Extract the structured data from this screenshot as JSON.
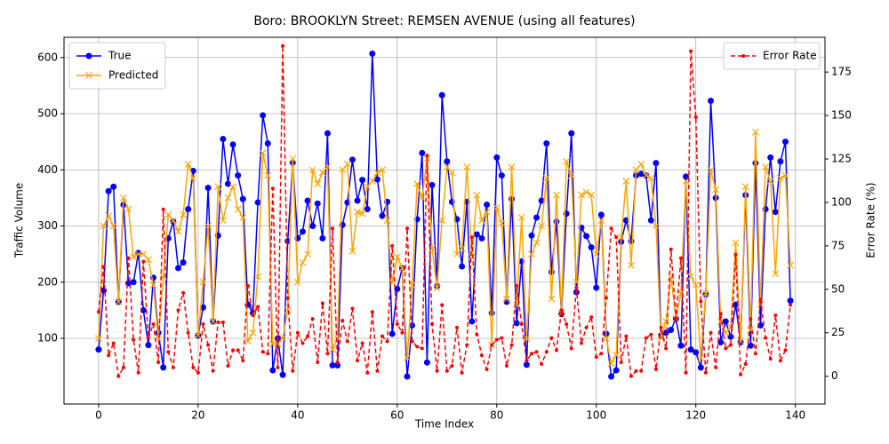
{
  "chart_data": {
    "type": "line",
    "title": "Boro: BROOKLYN Street: REMSEN AVENUE (using all features)",
    "xlabel": "Time Index",
    "ylabel": "Traffic Volume",
    "y2label": "Error Rate (%)",
    "x": [
      0,
      1,
      2,
      3,
      4,
      5,
      6,
      7,
      8,
      9,
      10,
      11,
      12,
      13,
      14,
      15,
      16,
      17,
      18,
      19,
      20,
      21,
      22,
      23,
      24,
      25,
      26,
      27,
      28,
      29,
      30,
      31,
      32,
      33,
      34,
      35,
      36,
      37,
      38,
      39,
      40,
      41,
      42,
      43,
      44,
      45,
      46,
      47,
      48,
      49,
      50,
      51,
      52,
      53,
      54,
      55,
      56,
      57,
      58,
      59,
      60,
      61,
      62,
      63,
      64,
      65,
      66,
      67,
      68,
      69,
      70,
      71,
      72,
      73,
      74,
      75,
      76,
      77,
      78,
      79,
      80,
      81,
      82,
      83,
      84,
      85,
      86,
      87,
      88,
      89,
      90,
      91,
      92,
      93,
      94,
      95,
      96,
      97,
      98,
      99,
      100,
      101,
      102,
      103,
      104,
      105,
      106,
      107,
      108,
      109,
      110,
      111,
      112,
      113,
      114,
      115,
      116,
      117,
      118,
      119,
      120,
      121,
      122,
      123,
      124,
      125,
      126,
      127,
      128,
      129,
      130,
      131,
      132,
      133,
      134,
      135,
      136,
      137,
      138,
      139
    ],
    "series": [
      {
        "name": "True",
        "color": "#0000ff",
        "marker": "circle",
        "linestyle": "solid",
        "axis": "y",
        "values": [
          80,
          185,
          362,
          370,
          165,
          338,
          198,
          200,
          252,
          150,
          88,
          208,
          110,
          48,
          278,
          308,
          225,
          235,
          330,
          398,
          105,
          155,
          368,
          130,
          283,
          455,
          375,
          445,
          390,
          348,
          160,
          145,
          342,
          497,
          447,
          43,
          100,
          35,
          273,
          413,
          278,
          290,
          345,
          300,
          340,
          278,
          465,
          52,
          52,
          302,
          342,
          418,
          345,
          382,
          330,
          607,
          383,
          318,
          343,
          108,
          188,
          225,
          32,
          123,
          312,
          430,
          57,
          373,
          193,
          533,
          415,
          343,
          312,
          228,
          343,
          130,
          285,
          278,
          338,
          145,
          422,
          390,
          165,
          348,
          127,
          237,
          53,
          283,
          315,
          345,
          447,
          218,
          308,
          143,
          322,
          465,
          182,
          297,
          282,
          262,
          190,
          320,
          108,
          32,
          43,
          272,
          310,
          273,
          390,
          393,
          390,
          310,
          412,
          105,
          110,
          115,
          135,
          87,
          388,
          80,
          75,
          48,
          178,
          523,
          350,
          93,
          130,
          103,
          160,
          93,
          355,
          87,
          412,
          123,
          330,
          422,
          325,
          415,
          450,
          167
        ]
      },
      {
        "name": "Predicted",
        "color": "#ffa500",
        "marker": "x",
        "linestyle": "solid",
        "axis": "y",
        "values": [
          100,
          300,
          318,
          300,
          165,
          350,
          330,
          245,
          250,
          250,
          240,
          195,
          100,
          210,
          320,
          310,
          290,
          320,
          410,
          385,
          105,
          200,
          300,
          130,
          370,
          310,
          350,
          370,
          330,
          315,
          95,
          110,
          210,
          430,
          390,
          90,
          90,
          100,
          150,
          420,
          200,
          235,
          250,
          400,
          375,
          395,
          405,
          80,
          100,
          400,
          410,
          255,
          325,
          322,
          370,
          380,
          395,
          400,
          310,
          200,
          245,
          225,
          65,
          195,
          375,
          350,
          420,
          260,
          190,
          310,
          405,
          395,
          250,
          260,
          405,
          245,
          355,
          310,
          325,
          88,
          333,
          305,
          170,
          405,
          160,
          315,
          100,
          250,
          270,
          300,
          385,
          170,
          355,
          145,
          415,
          390,
          200,
          355,
          360,
          355,
          250,
          310,
          100,
          55,
          70,
          280,
          380,
          230,
          400,
          410,
          390,
          385,
          300,
          100,
          130,
          210,
          135,
          180,
          380,
          210,
          195,
          65,
          180,
          400,
          365,
          130,
          110,
          120,
          270,
          95,
          370,
          115,
          467,
          160,
          405,
          380,
          215,
          385,
          390,
          230
        ]
      },
      {
        "name": "Error Rate",
        "color": "#ff0000",
        "marker": "dot",
        "linestyle": "dashed",
        "axis": "y2",
        "values": [
          37,
          63,
          12,
          19,
          0,
          5,
          68,
          21,
          2,
          66,
          22,
          30,
          8,
          96,
          14,
          5,
          38,
          48,
          25,
          5,
          2,
          30,
          18,
          3,
          31,
          31,
          6,
          15,
          15,
          9,
          52,
          35,
          40,
          14,
          13,
          108,
          5,
          190,
          45,
          3,
          25,
          19,
          23,
          33,
          8,
          42,
          13,
          85,
          8,
          32,
          20,
          39,
          9,
          19,
          2,
          37,
          3,
          23,
          20,
          75,
          30,
          25,
          85,
          20,
          17,
          16,
          127,
          30,
          3,
          41,
          3,
          6,
          28,
          2,
          18,
          80,
          24,
          12,
          4,
          18,
          21,
          22,
          6,
          18,
          52,
          30,
          9,
          13,
          14,
          7,
          14,
          22,
          15,
          38,
          30,
          16,
          51,
          19,
          28,
          34,
          11,
          13,
          45,
          85,
          80,
          8,
          23,
          0,
          3,
          3,
          22,
          24,
          4,
          28,
          16,
          73,
          33,
          68,
          2,
          187,
          149,
          43,
          2,
          25,
          5,
          36,
          16,
          18,
          70,
          1,
          7,
          33,
          13,
          44,
          22,
          10,
          35,
          9,
          15,
          41
        ]
      }
    ],
    "xlim": [
      -6.95,
      145.95
    ],
    "xticks": [
      0,
      20,
      40,
      60,
      80,
      100,
      120,
      140
    ],
    "ylim": [
      -17,
      636
    ],
    "yticks": [
      100,
      200,
      300,
      400,
      500,
      600
    ],
    "y2lim": [
      -16,
      195
    ],
    "y2ticks": [
      0,
      25,
      50,
      75,
      100,
      125,
      150,
      175
    ],
    "grid": true,
    "legend": "upper left",
    "legend2": "upper right"
  }
}
